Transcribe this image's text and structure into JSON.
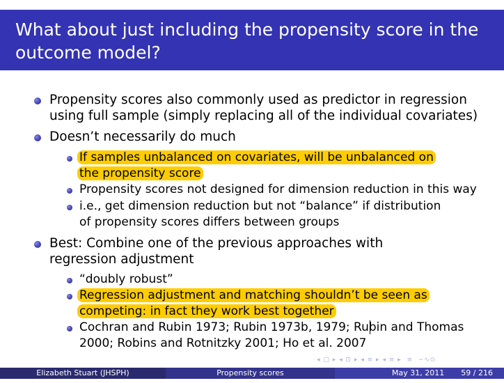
{
  "slide": {
    "title": "What about just including the propensity score in the outcome model?",
    "items": [
      {
        "text": "Propensity scores also commonly used as predictor in regression using full sample (simply replacing all of the individual covariates)"
      },
      {
        "text": "Doesn’t necessarily do much",
        "subitems": [
          "If samples unbalanced on covariates, will be unbalanced on the propensity score",
          "Propensity scores not designed for dimension reduction in this way",
          "i.e., get dimension reduction but not “balance” if distribution of propensity scores differs between groups"
        ]
      },
      {
        "text": "Best: Combine one of the previous approaches with regression adjustment",
        "subitems": [
          "“doubly robust”",
          "Regression adjustment and matching shouldn’t be seen as competing: in fact they work best together",
          "Cochran and Rubin 1973; Rubin 1973b, 1979; Rubin and Thomas 2000; Robins and Rotnitzky 2001; Ho et al. 2007"
        ]
      }
    ]
  },
  "footer": {
    "author": "Elizabeth Stuart (JHSPH)",
    "short_title": "Propensity scores",
    "date": "May 31, 2011",
    "page": "59 / 216"
  },
  "colors": {
    "title_bar": "#3333b3",
    "highlight": "#ffcc00",
    "footer_left": "#2a2a6e",
    "footer_mid": "#33338c",
    "footer_right": "#3d3da8"
  },
  "icons": [
    "bullet-icon",
    "nav-arrow-icon"
  ]
}
